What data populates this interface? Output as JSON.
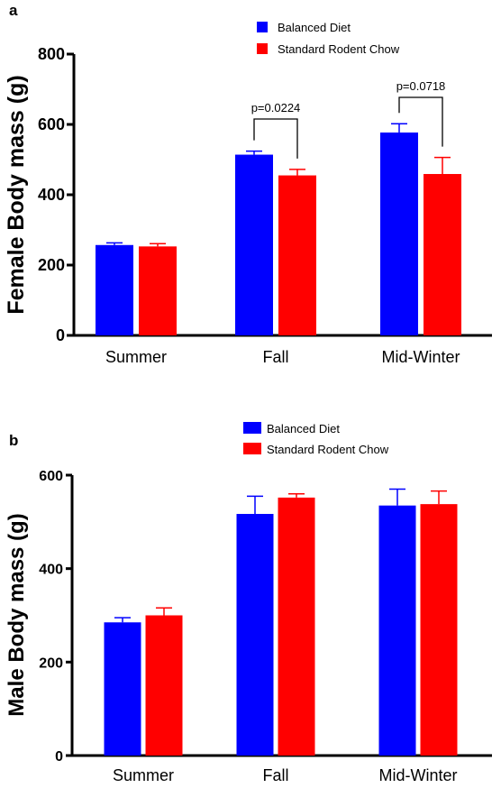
{
  "chart_data": [
    {
      "panel": "a",
      "type": "bar",
      "ylabel": "Female Body mass (g)",
      "categories": [
        "Summer",
        "Fall",
        "Mid-Winter"
      ],
      "series": [
        {
          "name": "Balanced Diet",
          "color": "#0000ff",
          "values": [
            257,
            514,
            577
          ],
          "errors": [
            6,
            10,
            25
          ]
        },
        {
          "name": "Standard Rodent  Chow",
          "color": "#ff0000",
          "values": [
            253,
            455,
            459
          ],
          "errors": [
            8,
            17,
            47
          ]
        }
      ],
      "ylim": [
        0,
        800
      ],
      "yticks": [
        0,
        200,
        400,
        600,
        800
      ],
      "legend_position": "top-right",
      "annotations": [
        {
          "category": "Fall",
          "text": "p=0.0224"
        },
        {
          "category": "Mid-Winter",
          "text": "p=0.0718"
        }
      ]
    },
    {
      "panel": "b",
      "type": "bar",
      "ylabel": "Male Body mass (g)",
      "categories": [
        "Summer",
        "Fall",
        "Mid-Winter"
      ],
      "series": [
        {
          "name": "Balanced Diet",
          "color": "#0000ff",
          "values": [
            285,
            517,
            535
          ],
          "errors": [
            10,
            38,
            35
          ]
        },
        {
          "name": "Standard Rodent Chow",
          "color": "#ff0000",
          "values": [
            300,
            552,
            538
          ],
          "errors": [
            16,
            8,
            28
          ]
        }
      ],
      "ylim": [
        0,
        600
      ],
      "yticks": [
        0,
        200,
        400,
        600
      ],
      "legend_position": "top-right"
    }
  ]
}
